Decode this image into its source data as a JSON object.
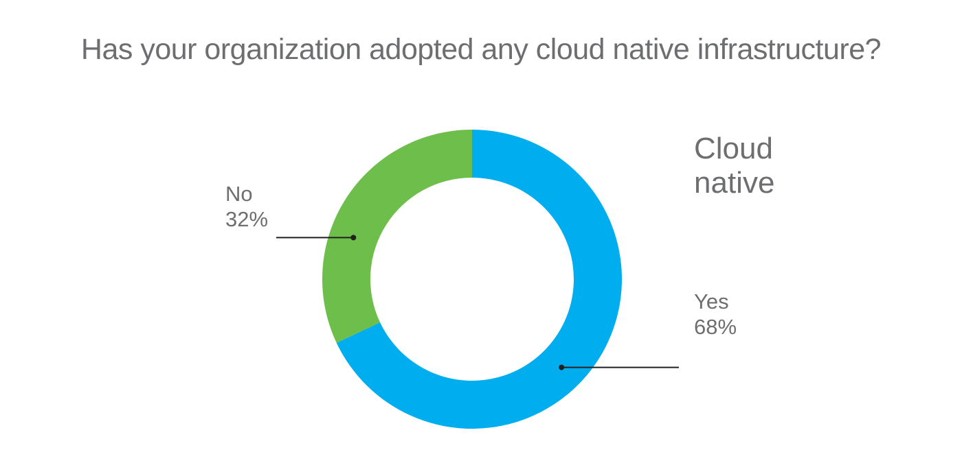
{
  "chart_data": {
    "type": "pie",
    "variant": "donut",
    "title": "Has your organization adopted any cloud native infrastructure?",
    "heading_lines": [
      "Cloud",
      "native"
    ],
    "categories": [
      "Yes",
      "No"
    ],
    "values": [
      68,
      32
    ],
    "value_labels": [
      "68%",
      "32%"
    ],
    "colors": [
      "#00adee",
      "#6dbe4b"
    ],
    "start_position": "12 o'clock",
    "direction": "clockwise",
    "legend": "none"
  }
}
